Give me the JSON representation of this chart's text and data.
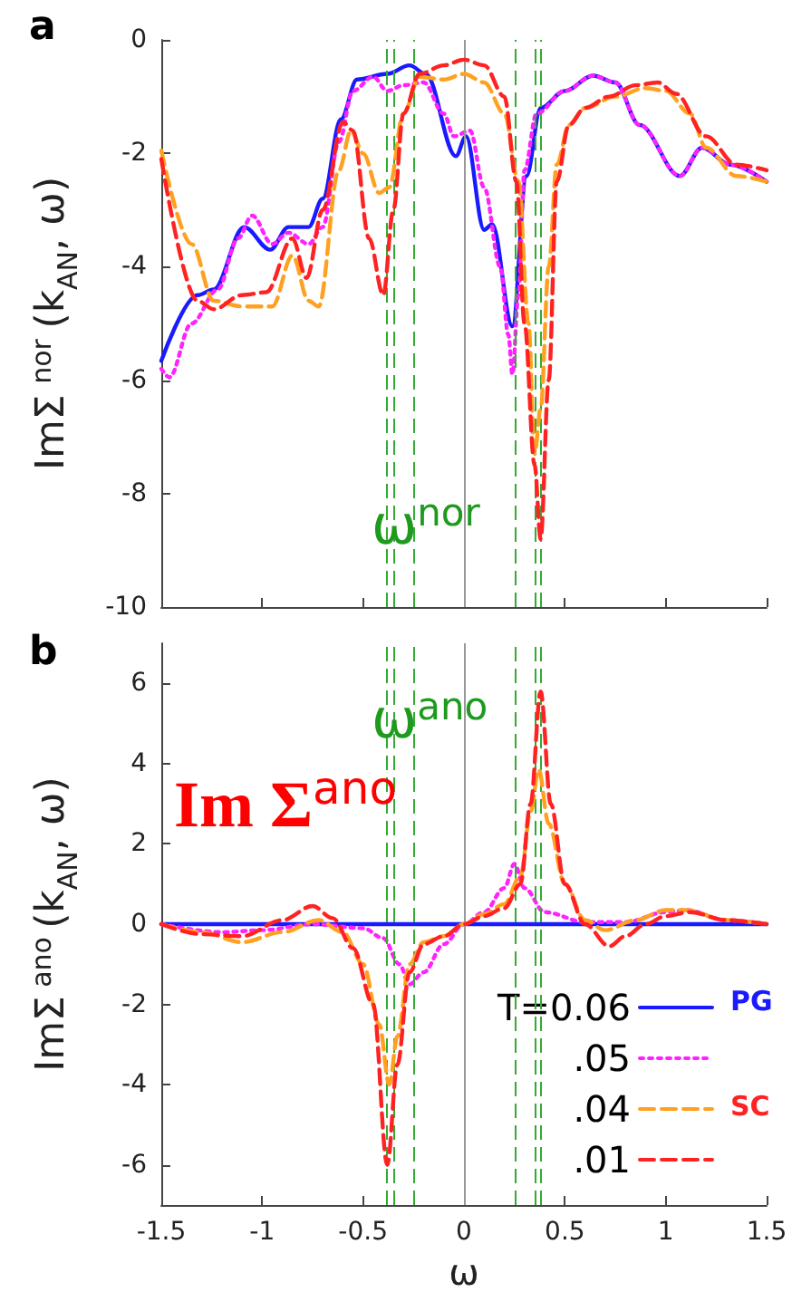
{
  "chart_data": [
    {
      "type": "line",
      "ylabel": "ImΣ$^{nor}$(k$_{AN}$, ω)",
      "xlim": [
        -1.5,
        1.5
      ],
      "xticks": [
        -1.5,
        -1,
        -0.5,
        0,
        0.5,
        1,
        1.5
      ],
      "ylim": [
        -10,
        0
      ],
      "yticks": [
        -10,
        -8,
        -6,
        -4,
        -2,
        0
      ],
      "tick_labels": "y",
      "marker": "none",
      "annotations": [
        "a",
        "ω$^{nor}$"
      ],
      "ref_lines": [
        {
          "axis": "x",
          "value": 0,
          "color": "#999999",
          "line_style": "solid"
        },
        {
          "axis": "x",
          "value": -0.38,
          "color": "#33aa33",
          "line_style": "dashed"
        },
        {
          "axis": "x",
          "value": -0.35,
          "color": "#33aa33",
          "line_style": "dashed"
        },
        {
          "axis": "x",
          "value": -0.25,
          "color": "#33aa33",
          "line_style": "dashed"
        },
        {
          "axis": "x",
          "value": 0.25,
          "color": "#33aa33",
          "line_style": "dashed"
        },
        {
          "axis": "x",
          "value": 0.35,
          "color": "#33aa33",
          "line_style": "dashed"
        },
        {
          "axis": "x",
          "value": 0.38,
          "color": "#33aa33",
          "line_style": "dashed"
        }
      ],
      "series": [
        {
          "color": "#1a1aff",
          "line_style": "solid",
          "x": [
            -1.5,
            -1.32,
            -1.24,
            -1.09,
            -0.96,
            -0.87,
            -0.77,
            -0.7,
            -0.61,
            -0.53,
            -0.38,
            -0.27,
            -0.19,
            -0.04,
            0.01,
            0.1,
            0.14,
            0.24,
            0.31,
            0.38,
            0.5,
            0.64,
            0.75,
            0.87,
            1.07,
            1.18,
            1.32,
            1.5
          ],
          "values": [
            -5.66,
            -4.5,
            -4.4,
            -3.3,
            -3.7,
            -3.3,
            -3.3,
            -2.8,
            -1.4,
            -0.7,
            -0.6,
            -0.45,
            -0.6,
            -2.05,
            -1.7,
            -3.35,
            -3.25,
            -5.05,
            -2.4,
            -1.2,
            -0.9,
            -0.63,
            -0.75,
            -1.5,
            -2.4,
            -1.9,
            -2.2,
            -2.5
          ]
        },
        {
          "color": "#ff22ff",
          "line_style": "dotted",
          "x": [
            -1.5,
            -1.46,
            -1.35,
            -1.22,
            -1.12,
            -1.05,
            -0.95,
            -0.87,
            -0.77,
            -0.7,
            -0.62,
            -0.55,
            -0.45,
            -0.38,
            -0.3,
            -0.2,
            -0.1,
            -0.05,
            0.03,
            0.1,
            0.18,
            0.22,
            0.24,
            0.27,
            0.3,
            0.36,
            0.5,
            0.64,
            0.75,
            0.87,
            1.07,
            1.18,
            1.32,
            1.5
          ],
          "values": [
            -5.8,
            -5.95,
            -5.0,
            -4.4,
            -3.5,
            -3.1,
            -3.6,
            -3.4,
            -3.6,
            -3.3,
            -1.8,
            -0.9,
            -0.65,
            -0.9,
            -0.8,
            -0.75,
            -1.3,
            -1.7,
            -1.6,
            -2.6,
            -4.0,
            -5.2,
            -5.9,
            -4.5,
            -2.3,
            -1.3,
            -0.9,
            -0.63,
            -0.75,
            -1.5,
            -2.4,
            -1.9,
            -2.2,
            -2.5
          ]
        },
        {
          "color": "#ffa020",
          "line_style": "dashed",
          "x": [
            -1.5,
            -1.35,
            -1.24,
            -1.1,
            -0.95,
            -0.85,
            -0.77,
            -0.72,
            -0.62,
            -0.56,
            -0.5,
            -0.42,
            -0.37,
            -0.3,
            -0.22,
            -0.1,
            0,
            0.1,
            0.2,
            0.27,
            0.32,
            0.35,
            0.38,
            0.42,
            0.46,
            0.52,
            0.6,
            0.75,
            0.9,
            1.0,
            1.12,
            1.2,
            1.35,
            1.5
          ],
          "values": [
            -1.95,
            -3.6,
            -4.6,
            -4.7,
            -4.7,
            -3.8,
            -4.6,
            -4.7,
            -2.3,
            -1.6,
            -2.0,
            -2.7,
            -2.6,
            -1.3,
            -0.65,
            -0.7,
            -0.6,
            -0.75,
            -1.3,
            -2.5,
            -5.0,
            -7.3,
            -6.5,
            -4.0,
            -2.2,
            -1.5,
            -1.2,
            -1.0,
            -0.85,
            -0.9,
            -1.3,
            -1.9,
            -2.4,
            -2.5
          ]
        },
        {
          "color": "#ff2222",
          "line_style": "dashed",
          "x": [
            -1.5,
            -1.32,
            -1.24,
            -1.1,
            -0.98,
            -0.85,
            -0.78,
            -0.7,
            -0.6,
            -0.55,
            -0.47,
            -0.4,
            -0.35,
            -0.3,
            -0.22,
            -0.1,
            0,
            0.1,
            0.2,
            0.26,
            0.3,
            0.35,
            0.38,
            0.42,
            0.46,
            0.52,
            0.6,
            0.72,
            0.85,
            0.96,
            1.05,
            1.2,
            1.35,
            1.5
          ],
          "values": [
            -2.1,
            -4.6,
            -4.75,
            -4.5,
            -4.45,
            -3.5,
            -4.2,
            -3.0,
            -1.45,
            -1.6,
            -3.5,
            -4.5,
            -3.0,
            -1.3,
            -0.6,
            -0.45,
            -0.35,
            -0.45,
            -1.0,
            -2.5,
            -5.0,
            -7.5,
            -8.8,
            -6.0,
            -2.5,
            -1.5,
            -1.2,
            -1.0,
            -0.8,
            -0.75,
            -0.95,
            -1.7,
            -2.2,
            -2.3
          ]
        }
      ]
    },
    {
      "type": "line",
      "xlabel": "ω",
      "ylabel": "ImΣ$^{ano}$(k$_{AN}$, ω)",
      "xlim": [
        -1.5,
        1.5
      ],
      "xticks": [
        -1.5,
        -1,
        -0.5,
        0,
        0.5,
        1,
        1.5
      ],
      "ylim": [
        -7,
        7
      ],
      "yticks": [
        -6,
        -4,
        -2,
        0,
        2,
        4,
        6
      ],
      "legend": "bottom right",
      "marker": "none",
      "annotations": [
        "b",
        "ω$^{ano}$",
        "Im Σ$^{ano}$",
        "PG",
        "SC"
      ],
      "ref_lines": [
        {
          "axis": "x",
          "value": 0,
          "color": "#999999",
          "line_style": "solid"
        },
        {
          "axis": "x",
          "value": -0.38,
          "color": "#33aa33",
          "line_style": "dashed"
        },
        {
          "axis": "x",
          "value": -0.35,
          "color": "#33aa33",
          "line_style": "dashed"
        },
        {
          "axis": "x",
          "value": -0.25,
          "color": "#33aa33",
          "line_style": "dashed"
        },
        {
          "axis": "x",
          "value": 0.25,
          "color": "#33aa33",
          "line_style": "dashed"
        },
        {
          "axis": "x",
          "value": 0.35,
          "color": "#33aa33",
          "line_style": "dashed"
        },
        {
          "axis": "x",
          "value": 0.38,
          "color": "#33aa33",
          "line_style": "dashed"
        }
      ],
      "series": [
        {
          "name": "T=0.06",
          "color": "#1a1aff",
          "line_style": "solid",
          "x": [
            -1.5,
            -0.5,
            0,
            0.5,
            1.5
          ],
          "values": [
            0,
            0,
            0,
            0,
            0
          ]
        },
        {
          "name": ".05",
          "color": "#ff22ff",
          "line_style": "dotted",
          "x": [
            -1.5,
            -1.2,
            -1.0,
            -0.75,
            -0.5,
            -0.4,
            -0.32,
            -0.27,
            -0.2,
            -0.1,
            0,
            0.1,
            0.2,
            0.25,
            0.3,
            0.4,
            0.6,
            0.8,
            1.0,
            1.1,
            1.3,
            1.5
          ],
          "values": [
            0,
            -0.2,
            -0.15,
            0,
            -0.1,
            -0.35,
            -1.0,
            -1.5,
            -1.2,
            -0.5,
            0,
            0.3,
            0.9,
            1.5,
            0.9,
            0.3,
            0.05,
            0.05,
            0.3,
            0.35,
            0.1,
            0
          ]
        },
        {
          "name": ".04",
          "color": "#ffa020",
          "line_style": "dashed",
          "x": [
            -1.5,
            -1.3,
            -1.1,
            -0.9,
            -0.72,
            -0.6,
            -0.5,
            -0.42,
            -0.37,
            -0.33,
            -0.27,
            -0.2,
            -0.1,
            0,
            0.1,
            0.2,
            0.28,
            0.33,
            0.37,
            0.42,
            0.5,
            0.6,
            0.7,
            0.85,
            1.0,
            1.1,
            1.3,
            1.5
          ],
          "values": [
            0,
            -0.2,
            -0.45,
            -0.2,
            0.1,
            -0.2,
            -1.0,
            -2.5,
            -4.0,
            -2.8,
            -1.0,
            -0.45,
            -0.3,
            0,
            0.25,
            0.5,
            1.2,
            2.8,
            3.85,
            2.5,
            1.0,
            0.1,
            -0.15,
            0.1,
            0.35,
            0.35,
            0.1,
            0
          ]
        },
        {
          "name": ".01",
          "color": "#ff2222",
          "line_style": "dashed",
          "x": [
            -1.5,
            -1.3,
            -1.1,
            -0.9,
            -0.75,
            -0.65,
            -0.55,
            -0.45,
            -0.38,
            -0.33,
            -0.27,
            -0.2,
            -0.1,
            0,
            0.1,
            0.2,
            0.28,
            0.33,
            0.38,
            0.43,
            0.5,
            0.6,
            0.72,
            0.8,
            0.9,
            1.0,
            1.12,
            1.3,
            1.5
          ],
          "values": [
            0,
            -0.25,
            -0.3,
            0.1,
            0.45,
            0.15,
            -0.6,
            -2.0,
            -6.0,
            -3.5,
            -1.2,
            -0.5,
            -0.3,
            0,
            0.2,
            0.4,
            1.0,
            3.0,
            5.8,
            3.0,
            1.0,
            0,
            -0.55,
            -0.3,
            0,
            0.2,
            0.3,
            0.1,
            0
          ]
        }
      ]
    }
  ]
}
